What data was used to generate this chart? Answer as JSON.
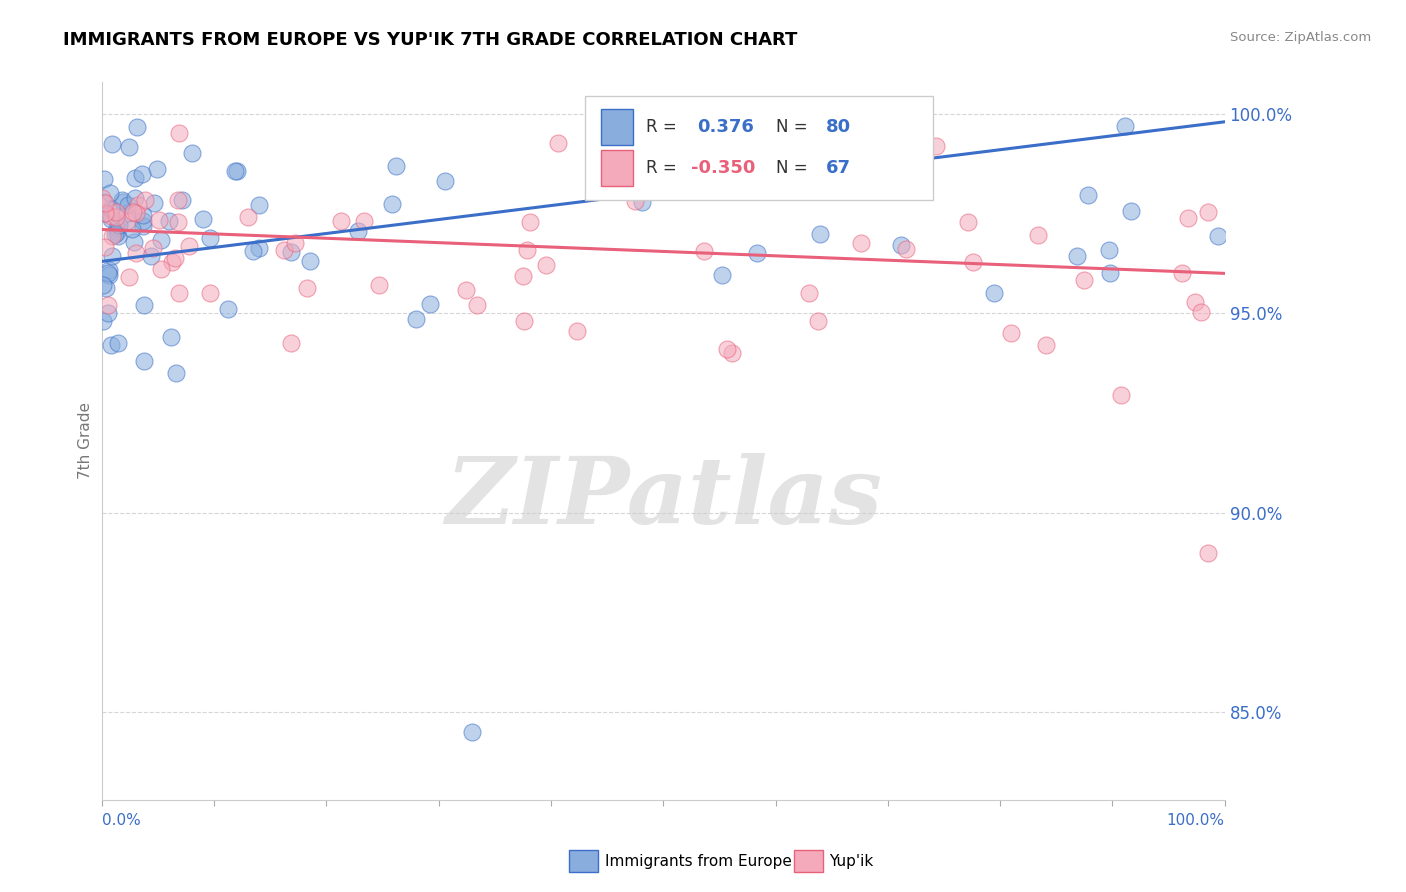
{
  "title": "IMMIGRANTS FROM EUROPE VS YUP'IK 7TH GRADE CORRELATION CHART",
  "source_text": "Source: ZipAtlas.com",
  "ylabel": "7th Grade",
  "blue_R": 0.376,
  "blue_N": 80,
  "pink_R": -0.35,
  "pink_N": 67,
  "blue_color": "#89AEDD",
  "pink_color": "#F4AABB",
  "blue_line_color": "#3B6EC8",
  "pink_line_color": "#E8607A",
  "xmin": 0.0,
  "xmax": 1.0,
  "ymin": 0.828,
  "ymax": 1.008,
  "y_ticks": [
    0.85,
    0.9,
    0.95,
    1.0
  ],
  "y_tick_labels": [
    "85.0%",
    "90.0%",
    "95.0%",
    "100.0%"
  ],
  "legend_label_blue": "Immigrants from Europe",
  "legend_label_pink": "Yup'ik",
  "blue_line_y0": 0.963,
  "blue_line_y1": 0.998,
  "pink_line_y0": 0.971,
  "pink_line_y1": 0.96,
  "watermark": "ZIPatlas"
}
